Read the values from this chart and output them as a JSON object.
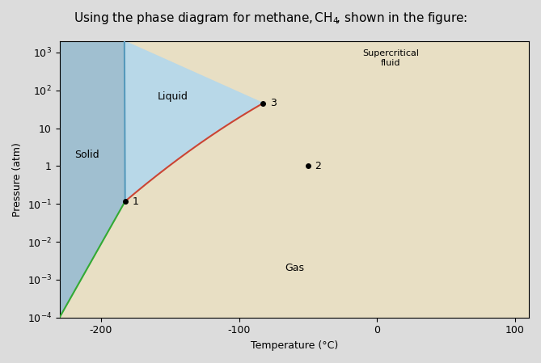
{
  "title": "Using the phase diagram for methane, CH₄, shown in the figure:",
  "xlabel": "Temperature (°C)",
  "ylabel": "Pressure (atm)",
  "xlim": [
    -230,
    110
  ],
  "ylim_log": [
    -4,
    3.3
  ],
  "yticks": [
    -4,
    -3,
    -2,
    -1,
    0,
    1,
    2,
    3
  ],
  "xticks": [
    -200,
    -100,
    0,
    100
  ],
  "fig_bg_color": "#dcdcdc",
  "plot_bg_color": "#f5f5f0",
  "solid_color": "#a0bfd0",
  "liquid_color": "#b8d8e8",
  "gas_color": "#e8dfc4",
  "title_fontsize": 11,
  "axis_label_fontsize": 9,
  "tick_fontsize": 9,
  "triple_T": -182.5,
  "triple_P": 0.117,
  "critical_T": -82.6,
  "critical_P": 45.8,
  "point1": [
    -182.5,
    0.117
  ],
  "point2": [
    -50,
    1.0
  ],
  "point3": [
    -82.6,
    45.8
  ]
}
